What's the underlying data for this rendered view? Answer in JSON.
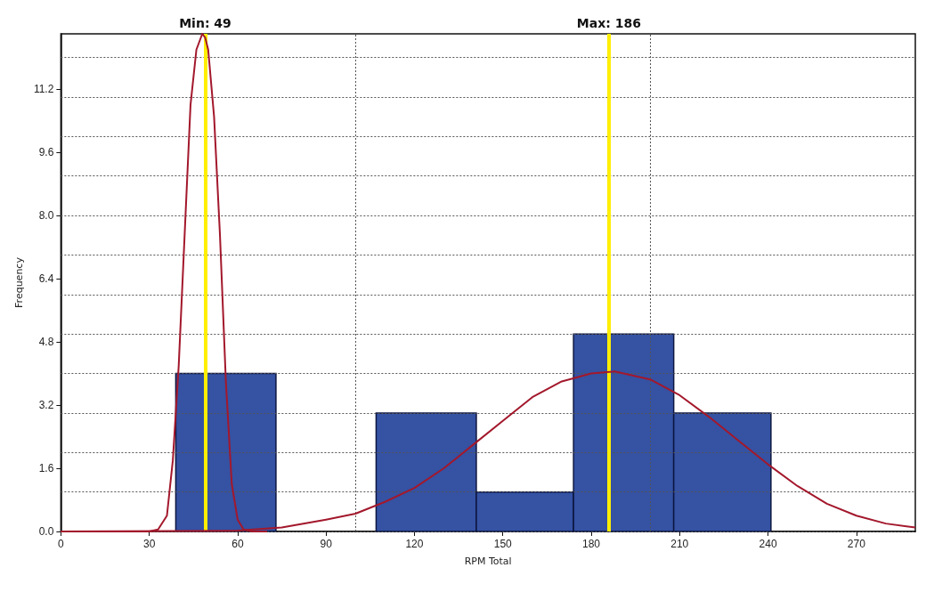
{
  "chart_data": {
    "type": "histogram",
    "xlabel": "RPM Total",
    "ylabel": "Frequency",
    "bins": [
      39,
      73,
      107,
      141,
      174,
      208,
      241
    ],
    "values": [
      4,
      0,
      3,
      1,
      5,
      3
    ],
    "color": "#3552a3",
    "series": [
      {
        "type": "line",
        "color": "#a3182c",
        "x": [
          0,
          30,
          33,
          36,
          38,
          40,
          42,
          44,
          46,
          48,
          49,
          50,
          52,
          54,
          56,
          58,
          60,
          62,
          65,
          70
        ],
        "values": [
          0,
          0,
          0.05,
          0.4,
          1.8,
          4.2,
          7.5,
          10.8,
          12.2,
          12.6,
          12.5,
          12.2,
          10.5,
          7.5,
          3.8,
          1.2,
          0.3,
          0.05,
          0,
          0
        ]
      },
      {
        "type": "line",
        "color": "#a3182c",
        "x": [
          0,
          60,
          75,
          90,
          100,
          110,
          120,
          130,
          140,
          150,
          160,
          170,
          180,
          188,
          200,
          210,
          220,
          230,
          240,
          250,
          260,
          270,
          280,
          290
        ],
        "values": [
          0,
          0.02,
          0.1,
          0.3,
          0.45,
          0.75,
          1.1,
          1.6,
          2.2,
          2.8,
          3.4,
          3.8,
          4.0,
          4.05,
          3.85,
          3.45,
          2.9,
          2.3,
          1.7,
          1.15,
          0.7,
          0.4,
          0.2,
          0.1
        ]
      }
    ],
    "ref_lines": [
      {
        "axis": "x",
        "value": 49,
        "label": "Min: 49",
        "color": "#ffee00"
      },
      {
        "axis": "x",
        "value": 186,
        "label": "Max: 186",
        "color": "#ffee00"
      }
    ],
    "xlim": [
      0,
      290
    ],
    "xticks": [
      0,
      30,
      60,
      90,
      {
        "value": 100,
        "label": null
      },
      120,
      150,
      180,
      {
        "value": 200,
        "label": null
      },
      210,
      240,
      270
    ],
    "ylim": [
      0,
      12.6
    ],
    "yticks": [
      {
        "value": 0,
        "label": "0.0"
      },
      {
        "value": 1,
        "label": null
      },
      1.6,
      {
        "value": 2,
        "label": null
      },
      {
        "value": 3,
        "label": null
      },
      3.2,
      {
        "value": 4,
        "label": null
      },
      4.8,
      {
        "value": 5,
        "label": null
      },
      {
        "value": 6,
        "label": null
      },
      6.4,
      {
        "value": 7,
        "label": null
      },
      {
        "value": 8,
        "label": "8.0"
      },
      {
        "value": 9,
        "label": null
      },
      9.6,
      {
        "value": 10,
        "label": null
      },
      {
        "value": 11,
        "label": null
      },
      11.2,
      {
        "value": 12,
        "label": null
      }
    ],
    "grid": true,
    "legend": false,
    "marker": "none"
  }
}
